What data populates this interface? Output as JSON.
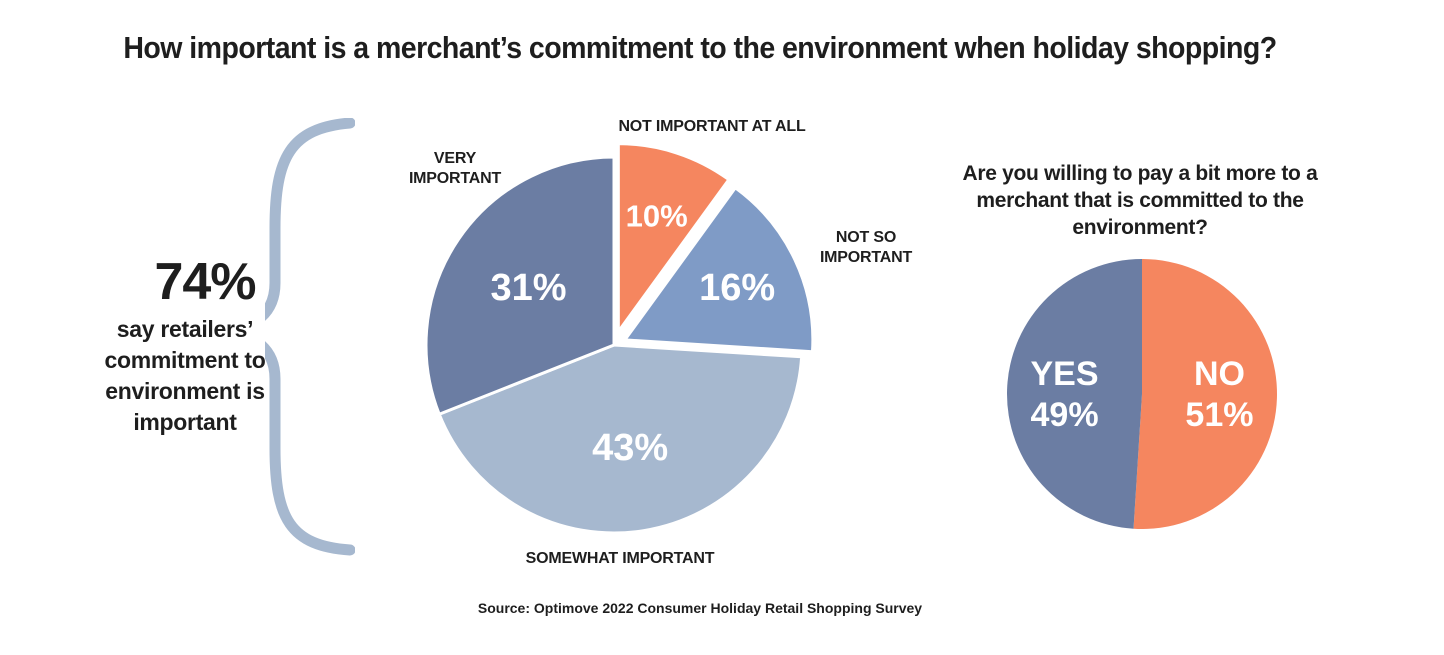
{
  "title": "How important is a merchant’s commitment to the environment when holiday shopping?",
  "callout": {
    "value": "74%",
    "text": "say retailers’ commitment to environment is important"
  },
  "source": "Source: Optimove 2022 Consumer Holiday Retail Shopping Survey",
  "chart_data": [
    {
      "type": "pie",
      "title": "How important is a merchant’s commitment to the environment when holiday shopping?",
      "slices": [
        {
          "label": "NOT IMPORTANT AT ALL",
          "value": 10,
          "value_label": "10%",
          "color": "#f5865f",
          "exploded": true
        },
        {
          "label": "NOT SO IMPORTANT",
          "value": 16,
          "value_label": "16%",
          "color": "#7f9bc6",
          "exploded": false
        },
        {
          "label": "SOMEWHAT IMPORTANT",
          "value": 43,
          "value_label": "43%",
          "color": "#a6b8cf",
          "exploded": false
        },
        {
          "label": "VERY IMPORTANT",
          "value": 31,
          "value_label": "31%",
          "color": "#6b7da3",
          "exploded": false
        }
      ]
    },
    {
      "type": "pie",
      "title": "Are you willing to pay a bit more to a merchant that is committed to the environment?",
      "slices": [
        {
          "label": "NO",
          "value": 51,
          "value_label": "51%",
          "color": "#f5865f"
        },
        {
          "label": "YES",
          "value": 49,
          "value_label": "49%",
          "color": "#6b7da3"
        }
      ]
    }
  ]
}
